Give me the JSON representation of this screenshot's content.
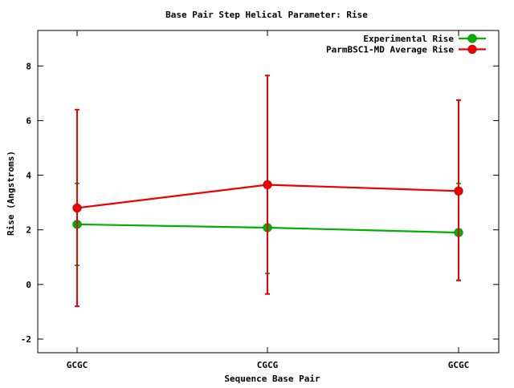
{
  "chart_data": {
    "type": "line",
    "title": "Base Pair Step Helical Parameter: Rise",
    "xlabel": "Sequence Base Pair",
    "ylabel": "Rise (Angstroms)",
    "categories": [
      "GCGC",
      "CGCG",
      "GCGC"
    ],
    "ylim": [
      -2.5,
      9.3
    ],
    "yticks": [
      -2,
      0,
      2,
      4,
      6,
      8
    ],
    "grid": false,
    "legend": "top-right",
    "series": [
      {
        "name": "Experimental Rise",
        "color": "#00b000",
        "values": [
          2.2,
          2.08,
          1.9
        ],
        "err_low": [
          0.7,
          0.4,
          0.15
        ],
        "err_high": [
          3.7,
          3.7,
          3.7
        ]
      },
      {
        "name": "ParmBSC1-MD Average Rise",
        "color": "#ee0000",
        "values": [
          2.8,
          3.65,
          3.42
        ],
        "err_low": [
          -0.8,
          -0.35,
          0.15
        ],
        "err_high": [
          6.4,
          7.65,
          6.75
        ]
      }
    ]
  }
}
